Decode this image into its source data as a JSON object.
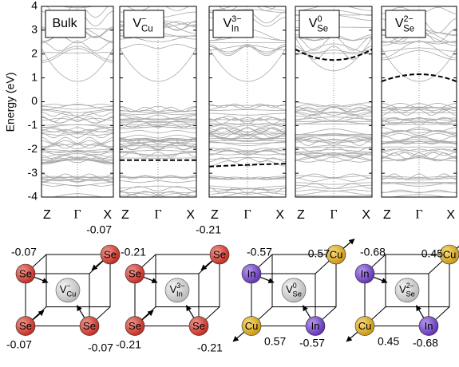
{
  "y_axis_label": "Energy (eV)",
  "ylim": [
    -4,
    4
  ],
  "yticks": [
    -4,
    -3,
    -2,
    -1,
    0,
    1,
    2,
    3,
    4
  ],
  "kpoints": [
    "Z",
    "Γ",
    "X"
  ],
  "panels": [
    {
      "label": {
        "base": "Bulk"
      }
    },
    {
      "label": {
        "base": "V",
        "sub": "Cu",
        "sup": "−"
      },
      "defect_level": [
        -2.45,
        -2.45,
        -2.45
      ]
    },
    {
      "label": {
        "base": "V",
        "sub": "In",
        "sup": "3−"
      },
      "defect_level": [
        -2.72,
        -2.65,
        -2.6
      ]
    },
    {
      "label": {
        "base": "V",
        "sub": "Se",
        "sup": "0"
      },
      "defect_level": [
        2.2,
        1.75,
        2.2
      ]
    },
    {
      "label": {
        "base": "V",
        "sub": "Se",
        "sup": "2−"
      },
      "defect_level": [
        0.85,
        1.15,
        0.85
      ]
    }
  ],
  "structures": [
    {
      "vacancy": {
        "base": "V",
        "sub": "Cu",
        "sup": "−"
      },
      "atoms": [
        {
          "label": "Se",
          "charge": -0.07
        },
        {
          "label": "Se",
          "charge": -0.07
        },
        {
          "label": "Se",
          "charge": -0.07
        },
        {
          "label": "Se",
          "charge": -0.07
        }
      ]
    },
    {
      "vacancy": {
        "base": "V",
        "sub": "In",
        "sup": "3−"
      },
      "atoms": [
        {
          "label": "Se",
          "charge": -0.21
        },
        {
          "label": "Se",
          "charge": -0.21
        },
        {
          "label": "Se",
          "charge": -0.21
        },
        {
          "label": "Se",
          "charge": -0.21
        }
      ]
    },
    {
      "vacancy": {
        "base": "V",
        "sub": "Se",
        "sup": "0"
      },
      "atoms": [
        {
          "label": "In",
          "charge": -0.57
        },
        {
          "label": "Cu",
          "charge": 0.57
        },
        {
          "label": "Cu",
          "charge": 0.57
        },
        {
          "label": "In",
          "charge": -0.57
        }
      ]
    },
    {
      "vacancy": {
        "base": "V",
        "sub": "Se",
        "sup": "2−"
      },
      "atoms": [
        {
          "label": "In",
          "charge": -0.68
        },
        {
          "label": "Cu",
          "charge": 0.45
        },
        {
          "label": "Cu",
          "charge": 0.45
        },
        {
          "label": "In",
          "charge": -0.68
        }
      ]
    }
  ]
}
